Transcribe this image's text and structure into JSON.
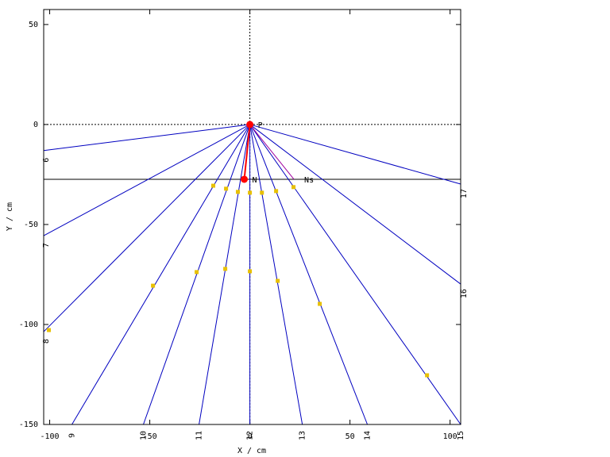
{
  "chart_data": {
    "type": "scatter",
    "xlabel": "X / cm",
    "ylabel": "Y / cm",
    "xlim": [
      -103,
      105.3
    ],
    "ylim": [
      -150,
      57.5
    ],
    "xticks": [
      -100,
      -50,
      0,
      50,
      100
    ],
    "yticks": [
      50,
      0,
      -50,
      -100,
      -150
    ],
    "ray_color": "#0000c0",
    "point_color": "#e8c000",
    "marker_color": "#ff0000",
    "ns_color": "#a000a0",
    "hline_y": -27.4,
    "rays": [
      {
        "label": "6",
        "x": -103,
        "y": -13
      },
      {
        "label": "7",
        "x": -103,
        "y": -55.6
      },
      {
        "label": "8",
        "x": -103,
        "y": -103.6
      },
      {
        "label": "9",
        "x": -88.9,
        "y": -150
      },
      {
        "label": "10",
        "x": -53.2,
        "y": -150
      },
      {
        "label": "11",
        "x": -25.4,
        "y": -150
      },
      {
        "label": "12",
        "x": 0,
        "y": -150
      },
      {
        "label": "13",
        "x": 26.2,
        "y": -150
      },
      {
        "label": "14",
        "x": 58.7,
        "y": -150
      },
      {
        "label": "15",
        "x": 105.3,
        "y": -150
      },
      {
        "label": "16",
        "x": 105.3,
        "y": -79.8
      },
      {
        "label": "17",
        "x": 105.3,
        "y": -29.8
      }
    ],
    "points": {
      "x": [
        -18.3,
        -11.9,
        -6,
        0,
        6,
        13.1,
        21.8,
        -48.4,
        -26.6,
        -12.3,
        0,
        13.9,
        34.9,
        88.5,
        -100.4
      ],
      "y": [
        -30.6,
        -32.1,
        -33.7,
        -34.1,
        -34.1,
        -33.3,
        -31.3,
        -80.6,
        -73.8,
        -72.2,
        -73.4,
        -78.2,
        -89.7,
        -125.4,
        -102.8
      ]
    },
    "markers": [
      {
        "label": "P",
        "x": 0,
        "y": 0
      },
      {
        "label": "N",
        "x": -2.8,
        "y": -27.4
      },
      {
        "label": "Ns",
        "x": 22,
        "y": -27.4
      }
    ]
  }
}
